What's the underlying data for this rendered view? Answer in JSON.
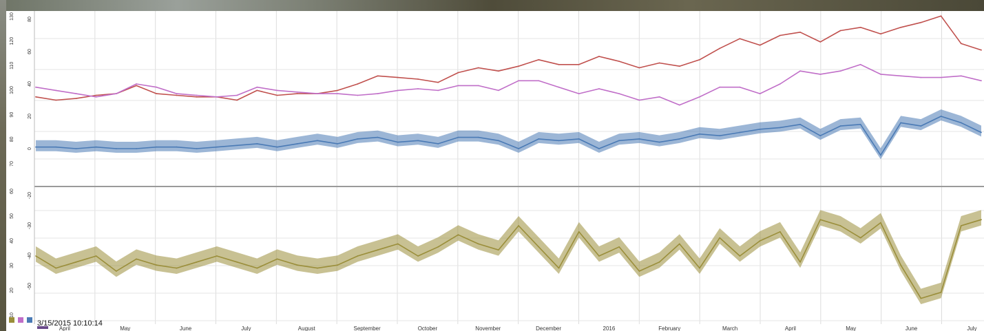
{
  "chart_data": [
    {
      "type": "line",
      "panel": "upper",
      "yticks_left": [
        "130",
        "120",
        "110",
        "100",
        "90",
        "80",
        "70"
      ],
      "yticks_right": [
        "80",
        "60",
        "40",
        "20",
        "0"
      ],
      "series": [
        {
          "color": "#c0504d",
          "values": [
            32,
            30,
            31,
            33,
            34,
            39,
            34,
            33,
            32,
            32,
            30,
            36,
            33,
            34,
            34,
            36,
            40,
            45,
            44,
            43,
            41,
            47,
            50,
            48,
            51,
            55,
            52,
            52,
            57,
            54,
            50,
            53,
            51,
            55,
            62,
            68,
            64,
            70,
            72,
            66,
            73,
            75,
            71,
            75,
            78,
            82,
            65,
            61
          ]
        },
        {
          "color": "#c06ec8",
          "values": [
            38,
            36,
            34,
            32,
            34,
            40,
            38,
            34,
            33,
            32,
            33,
            38,
            36,
            35,
            34,
            34,
            33,
            34,
            36,
            37,
            36,
            39,
            39,
            36,
            42,
            42,
            38,
            34,
            37,
            34,
            30,
            32,
            27,
            32,
            38,
            38,
            34,
            40,
            48,
            46,
            48,
            52,
            46,
            45,
            44,
            44,
            45,
            42
          ]
        },
        {
          "color": "#4a7ab5",
          "band": true,
          "values": [
            1,
            1,
            0,
            1,
            0,
            0,
            1,
            1,
            0,
            1,
            2,
            3,
            1,
            3,
            5,
            3,
            6,
            7,
            4,
            5,
            3,
            7,
            7,
            5,
            0,
            6,
            5,
            6,
            0,
            5,
            6,
            4,
            6,
            9,
            8,
            10,
            12,
            13,
            15,
            8,
            14,
            15,
            -4,
            16,
            14,
            20,
            16,
            10
          ]
        }
      ]
    },
    {
      "type": "line",
      "panel": "lower",
      "yticks_left": [
        "60",
        "50",
        "40",
        "30",
        "20",
        "10"
      ],
      "yticks_right": [
        "-20",
        "-30",
        "-40",
        "-50"
      ],
      "series": [
        {
          "color": "#9a8e3a",
          "band": true,
          "values": [
            -40,
            -44,
            -42,
            -40,
            -45,
            -41,
            -43,
            -44,
            -42,
            -40,
            -42,
            -44,
            -41,
            -43,
            -44,
            -43,
            -40,
            -38,
            -36,
            -40,
            -37,
            -33,
            -36,
            -38,
            -30,
            -37,
            -44,
            -32,
            -40,
            -37,
            -45,
            -42,
            -36,
            -44,
            -34,
            -40,
            -35,
            -32,
            -42,
            -28,
            -30,
            -34,
            -29,
            -43,
            -54,
            -52,
            -30,
            -28
          ]
        }
      ]
    }
  ],
  "x_axis": {
    "months": [
      "April",
      "May",
      "June",
      "July",
      "August",
      "September",
      "October",
      "November",
      "December",
      "2016",
      "February",
      "March",
      "April",
      "May",
      "June",
      "July"
    ]
  },
  "timestamp": "3/15/2015 10:10:14",
  "tools": [
    "legend-icon",
    "series-toggle-icon",
    "series-toggle-icon",
    "series-toggle-icon"
  ]
}
